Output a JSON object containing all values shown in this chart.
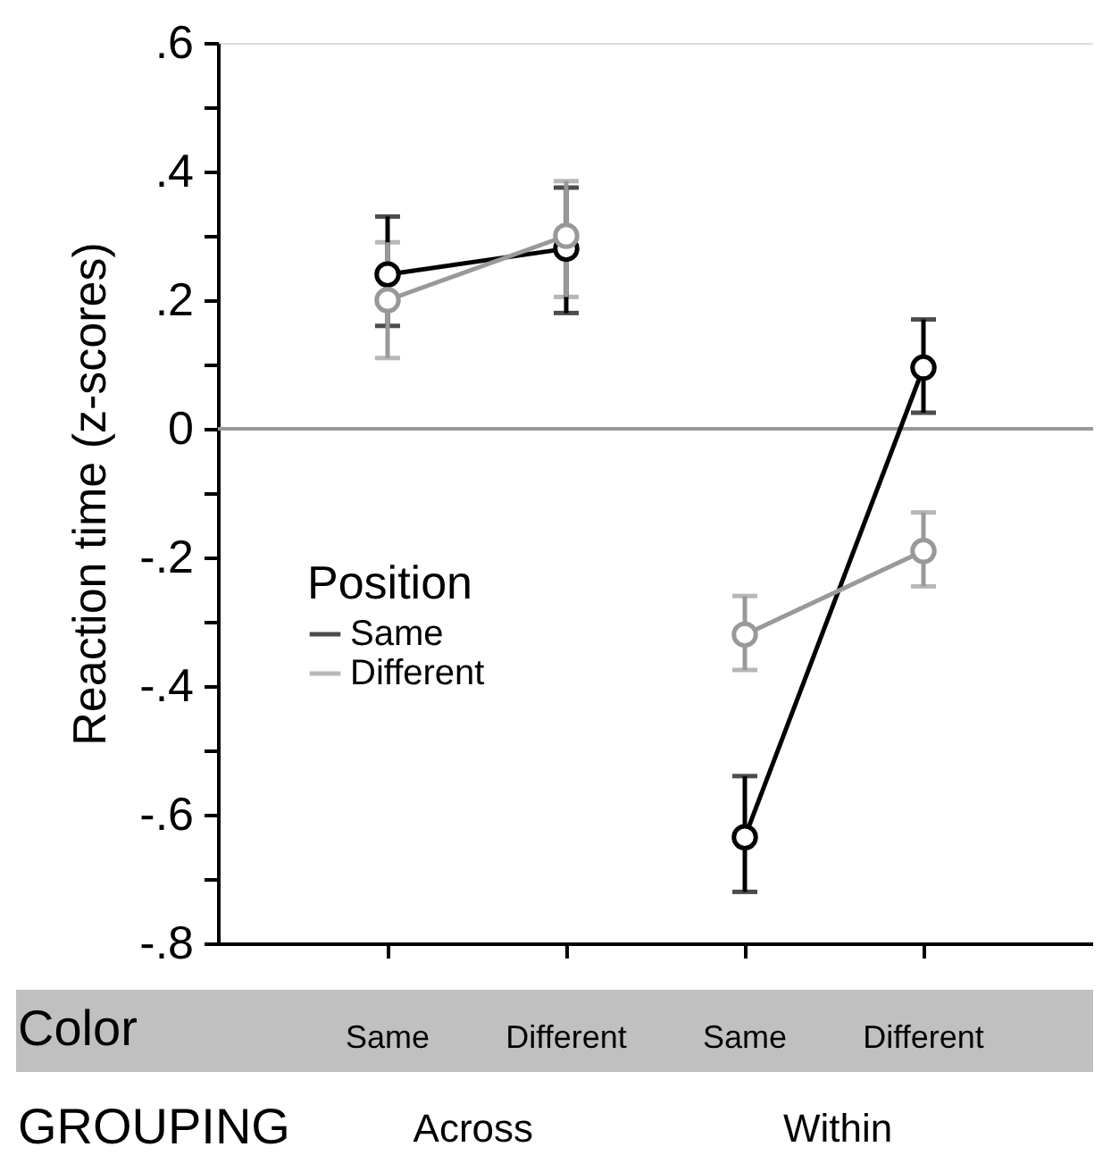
{
  "chart_data": {
    "type": "line",
    "categories": [
      "Same",
      "Different",
      "Same",
      "Different"
    ],
    "xlabel": "Color",
    "ylabel": "Reaction time (z-scores)",
    "legend_title": "Position",
    "legend": "left",
    "marker": "circle",
    "line_style": "solid",
    "grid": false,
    "series": [
      {
        "name": "Same",
        "color": "#000000",
        "values": [
          0.24,
          0.28,
          -0.635,
          0.095
        ],
        "errors": [
          [
            0.16,
            0.33
          ],
          [
            0.18,
            0.375
          ],
          [
            -0.72,
            -0.54
          ],
          [
            0.025,
            0.17
          ]
        ]
      },
      {
        "name": "Different",
        "color": "#999999",
        "values": [
          0.2,
          0.3,
          -0.32,
          -0.19
        ],
        "errors": [
          [
            0.11,
            0.29
          ],
          [
            0.205,
            0.385
          ],
          [
            -0.375,
            -0.26
          ],
          [
            -0.245,
            -0.13
          ]
        ]
      }
    ],
    "ylim": [
      -0.8,
      0.6
    ],
    "yticks": [
      {
        "value": -0.8,
        "label": "-.8"
      },
      {
        "value": -0.7,
        "label": null
      },
      {
        "value": -0.6,
        "label": "-.6"
      },
      {
        "value": -0.5,
        "label": null
      },
      {
        "value": -0.4,
        "label": "-.4"
      },
      {
        "value": -0.3,
        "label": null
      },
      {
        "value": -0.2,
        "label": "-.2"
      },
      {
        "value": -0.1,
        "label": null
      },
      0,
      {
        "value": 0.1,
        "label": null
      },
      {
        "value": 0.2,
        "label": ".2"
      },
      {
        "value": 0.3,
        "label": null
      },
      {
        "value": 0.4,
        "label": ".4"
      },
      {
        "value": 0.5,
        "label": null
      },
      {
        "value": 0.6,
        "label": ".6"
      }
    ],
    "ref_lines": [
      {
        "axis": "y",
        "value": 0,
        "color": "#999999"
      }
    ],
    "annotations": [
      "GROUPING",
      "Across",
      "Within"
    ]
  }
}
